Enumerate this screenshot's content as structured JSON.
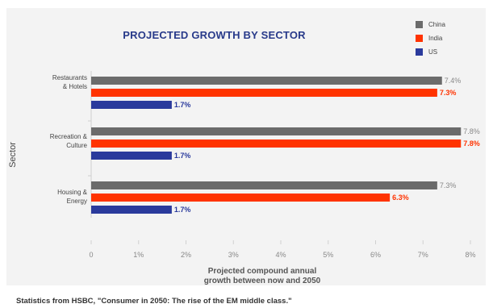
{
  "chart_data": {
    "type": "bar",
    "orientation": "horizontal",
    "title": "PROJECTED GROWTH BY SECTOR",
    "ylabel": "Sector",
    "xlabel_lines": [
      "Projected compound annual",
      "growth between now and 2050"
    ],
    "categories": [
      {
        "lines": [
          "Restaurants",
          "& Hotels"
        ]
      },
      {
        "lines": [
          "Recreation &",
          "Culture"
        ]
      },
      {
        "lines": [
          "Housing &",
          "Energy"
        ]
      }
    ],
    "series": [
      {
        "name": "China",
        "color": "#6b6b6b",
        "label_color": "#888888",
        "values": [
          7.4,
          7.8,
          7.3
        ],
        "labels": [
          "7.4%",
          "7.8%",
          "7.3%"
        ]
      },
      {
        "name": "India",
        "color": "#ff3300",
        "label_color": "#ff3300",
        "values": [
          7.3,
          7.8,
          6.3
        ],
        "labels": [
          "7.3%",
          "7.8%",
          "6.3%"
        ]
      },
      {
        "name": "US",
        "color": "#2a3a9c",
        "label_color": "#2a3a9c",
        "values": [
          1.7,
          1.7,
          1.7
        ],
        "labels": [
          "1.7%",
          "1.7%",
          "1.7%"
        ]
      }
    ],
    "xticks": [
      "0",
      "1%",
      "2%",
      "3%",
      "4%",
      "5%",
      "6%",
      "7%",
      "8%"
    ],
    "xlim": [
      0,
      8
    ],
    "legend_position": "top-right",
    "grid": false
  },
  "footer": {
    "source": "Statistics from HSBC, \"Consumer in 2050: The rise of the EM middle class.\""
  }
}
